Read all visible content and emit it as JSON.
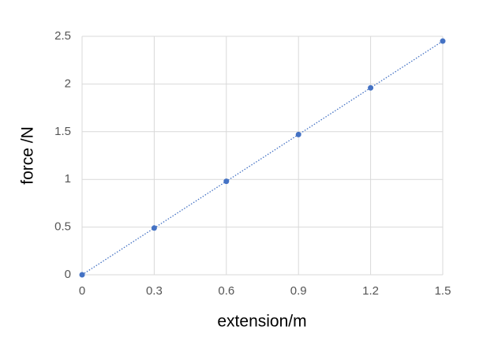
{
  "chart_data": {
    "type": "scatter",
    "x_label": "extension/m",
    "y_label": "force /N",
    "series": [
      {
        "x": [
          0,
          0.3,
          0.6,
          0.9,
          1.2,
          1.5
        ],
        "values": [
          0,
          0.49,
          0.98,
          1.47,
          1.96,
          2.45
        ],
        "color": "#4472c4"
      }
    ],
    "xlim": [
      0,
      1.5
    ],
    "xticks": [
      0,
      0.3,
      0.6,
      0.9,
      1.2,
      1.5
    ],
    "ylim": [
      0,
      2.5
    ],
    "yticks": [
      0,
      0.5,
      1,
      1.5,
      2,
      2.5
    ],
    "grid": true,
    "line_style": "dotted"
  }
}
